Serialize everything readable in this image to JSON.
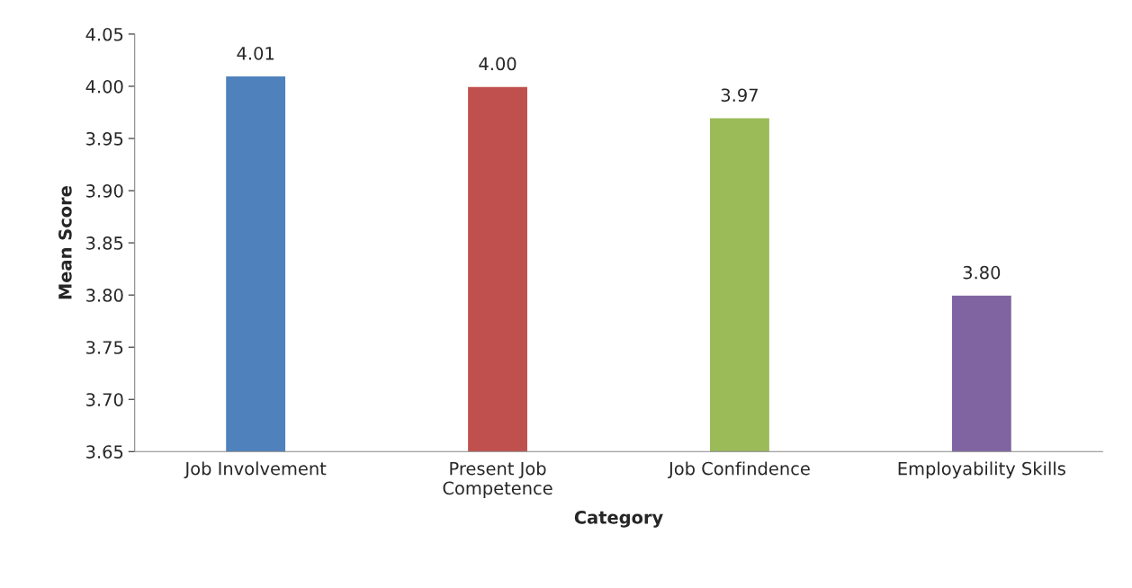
{
  "chart_data": {
    "type": "bar",
    "categories": [
      "Job Involvement",
      "Present Job\nCompetence",
      "Job Confindence",
      "Employability Skills"
    ],
    "values": [
      4.01,
      4.0,
      3.97,
      3.8
    ],
    "value_labels": [
      "4.01",
      "4.00",
      "3.97",
      "3.80"
    ],
    "colors": [
      "#4f81bd",
      "#c0504d",
      "#9bbb59",
      "#8064a2"
    ],
    "xlabel": "Category",
    "ylabel": "Mean Score",
    "ylim": [
      3.65,
      4.05
    ],
    "yticks": [
      {
        "value": 3.65,
        "label": "3.65"
      },
      {
        "value": 3.7,
        "label": "3.70"
      },
      {
        "value": 3.75,
        "label": "3.75"
      },
      {
        "value": 3.8,
        "label": "3.80"
      },
      {
        "value": 3.85,
        "label": "3.85"
      },
      {
        "value": 3.9,
        "label": "3.90"
      },
      {
        "value": 3.95,
        "label": "3.95"
      },
      {
        "value": 4.0,
        "label": "4.00"
      },
      {
        "value": 4.05,
        "label": "4.05"
      }
    ],
    "grid": false,
    "legend": false
  }
}
